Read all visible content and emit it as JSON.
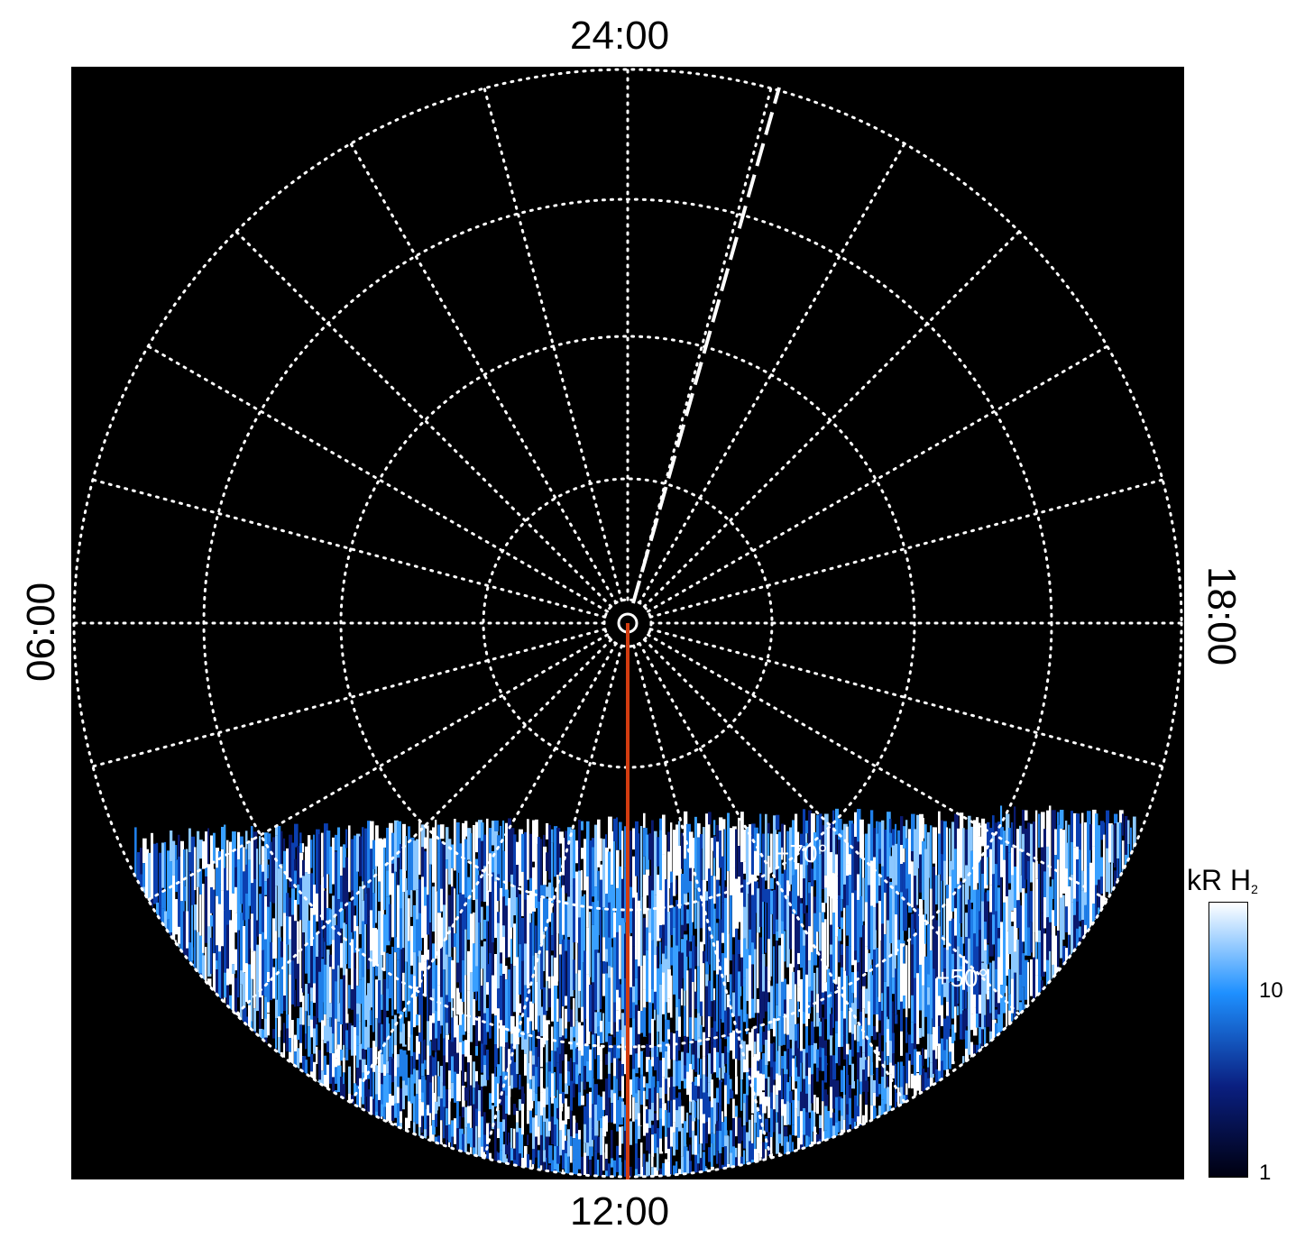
{
  "chart_data": {
    "type": "heatmap",
    "projection": "polar",
    "local_time_labels": {
      "top": "24:00",
      "bottom": "12:00",
      "left": "06:00",
      "right": "18:00"
    },
    "latitude_labels": [
      "+70°",
      "+50°"
    ],
    "colorbar": {
      "label": "kR H",
      "label_subscript": "2",
      "tick_labels": [
        "10",
        "1"
      ],
      "scale": "log",
      "colors": [
        "#000010",
        "#0a1f80",
        "#1e90ff",
        "#ffffff"
      ]
    },
    "grid": true,
    "colors": {
      "background": "#000000",
      "grid": "#ffffff",
      "red_meridian": "#d23c10",
      "dashed_meridian": "#ffffff"
    }
  }
}
